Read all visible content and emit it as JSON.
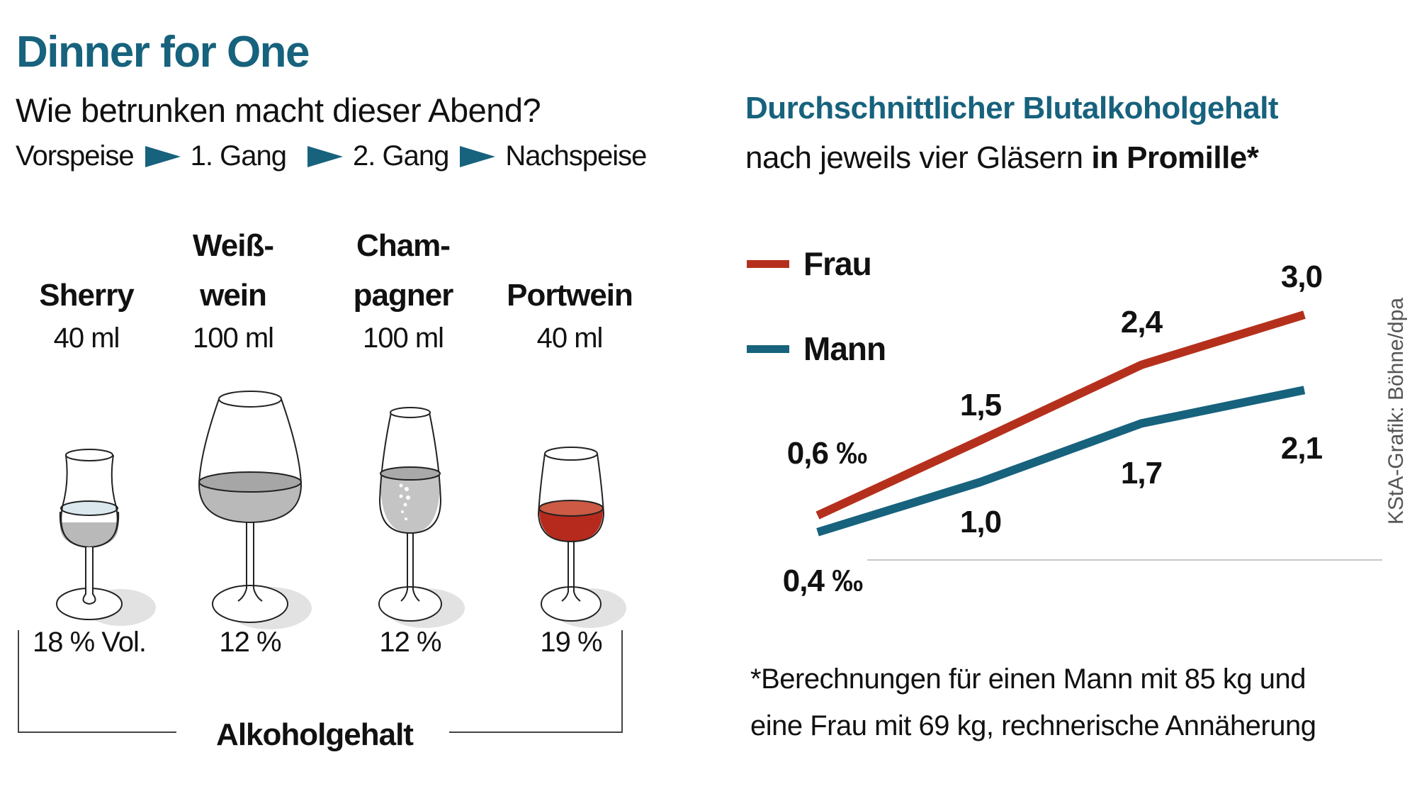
{
  "header": {
    "title": "Dinner for One",
    "subtitle": "Wie betrunken macht dieser Abend?",
    "courses": [
      "Vorspeise",
      "1. Gang",
      "2. Gang",
      "Nachspeise"
    ],
    "arrow_icon": "triangle-right-icon",
    "accent_color": "#17627d"
  },
  "drinks": [
    {
      "name_line1": "",
      "name_line2": "Sherry",
      "volume": "40 ml",
      "alcohol": "18 % Vol.",
      "liquid_color": "#b9b9b9",
      "surface_color": "#dbe9ef"
    },
    {
      "name_line1": "Weiß-",
      "name_line2": "wein",
      "volume": "100 ml",
      "alcohol": "12 %",
      "liquid_color": "#b9b9b9",
      "surface_color": "#a6a6a6"
    },
    {
      "name_line1": "Cham-",
      "name_line2": "pagner",
      "volume": "100 ml",
      "alcohol": "12 %",
      "liquid_color": "#c4c4c4",
      "surface_color": "#a9a9a9"
    },
    {
      "name_line1": "",
      "name_line2": "Portwein",
      "volume": "40 ml",
      "alcohol": "19 %",
      "liquid_color": "#b52a1c",
      "surface_color": "#cc5a45"
    }
  ],
  "bracket_label": "Alkoholgehalt",
  "chart": {
    "title": "Durchschnittlicher Blutalkoholgehalt",
    "subtitle_plain": "nach jeweils vier Gläsern ",
    "subtitle_bold": "in Promille*",
    "footnote_line1": "*Berechnungen für einen Mann mit 85 kg und",
    "footnote_line2": "eine Frau mit 69 kg, rechnerische Annäherung",
    "credit": "KStA-Grafik: Böhne/dpa"
  },
  "chart_data": {
    "type": "line",
    "title": "Durchschnittlicher Blutalkoholgehalt",
    "unit": "‰",
    "categories": [
      "Vorspeise",
      "1. Gang",
      "2. Gang",
      "Nachspeise"
    ],
    "series": [
      {
        "name": "Frau",
        "color": "#b5301c",
        "values": [
          0.6,
          1.5,
          2.4,
          3.0
        ],
        "labels": [
          "0,6 ‰",
          "1,5",
          "2,4",
          "3,0"
        ]
      },
      {
        "name": "Mann",
        "color": "#17627d",
        "values": [
          0.4,
          1.0,
          1.7,
          2.1
        ],
        "labels": [
          "0,4 ‰",
          "1,0",
          "1,7",
          "2,1"
        ]
      }
    ],
    "legend": "top-left",
    "grid": false
  }
}
